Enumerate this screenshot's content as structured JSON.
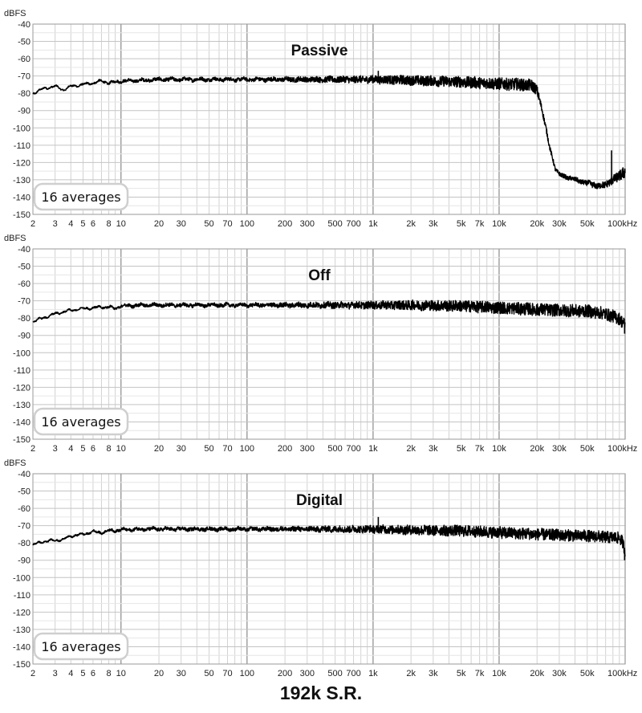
{
  "figure_caption": "192k S.R.",
  "chart_data": [
    {
      "type": "line",
      "title": "Passive",
      "ylabel": "dBFS",
      "x_unit": "Hz",
      "x_scale": "log",
      "xlim": [
        2,
        100000
      ],
      "ylim": [
        -150,
        -40
      ],
      "grid": true,
      "badge": "16 averages",
      "y_ticks": [
        "-40",
        "-50",
        "-60",
        "-70",
        "-80",
        "-90",
        "-100",
        "-110",
        "-120",
        "-130",
        "-140",
        "-150"
      ],
      "x_ticks": [
        {
          "v": 2,
          "label": "2"
        },
        {
          "v": 3,
          "label": "3"
        },
        {
          "v": 4,
          "label": "4"
        },
        {
          "v": 5,
          "label": "5"
        },
        {
          "v": 6,
          "label": "6"
        },
        {
          "v": 8,
          "label": "8"
        },
        {
          "v": 10,
          "label": "10"
        },
        {
          "v": 20,
          "label": "20"
        },
        {
          "v": 30,
          "label": "30"
        },
        {
          "v": 50,
          "label": "50"
        },
        {
          "v": 70,
          "label": "70"
        },
        {
          "v": 100,
          "label": "100"
        },
        {
          "v": 200,
          "label": "200"
        },
        {
          "v": 300,
          "label": "300"
        },
        {
          "v": 500,
          "label": "500"
        },
        {
          "v": 700,
          "label": "700"
        },
        {
          "v": 1000,
          "label": "1k"
        },
        {
          "v": 2000,
          "label": "2k"
        },
        {
          "v": 3000,
          "label": "3k"
        },
        {
          "v": 5000,
          "label": "5k"
        },
        {
          "v": 7000,
          "label": "7k"
        },
        {
          "v": 10000,
          "label": "10k"
        },
        {
          "v": 20000,
          "label": "20k"
        },
        {
          "v": 30000,
          "label": "30k"
        },
        {
          "v": 50000,
          "label": "50k"
        },
        {
          "v": 100000,
          "label": "100kHz"
        }
      ],
      "series": [
        {
          "x": [
            2,
            2.5,
            3,
            3.5,
            4,
            5,
            6,
            7,
            8,
            10,
            15,
            20,
            50,
            100,
            200,
            500,
            1000,
            2000,
            5000,
            10000,
            15000,
            18000,
            20000,
            22000,
            25000,
            28000,
            30000,
            40000,
            50000,
            60000,
            70000,
            80000,
            90000,
            100000
          ],
          "y": [
            -80,
            -77,
            -76,
            -78,
            -76,
            -75,
            -74,
            -73,
            -74,
            -73,
            -72.5,
            -72,
            -72,
            -72,
            -72,
            -72,
            -72,
            -72.5,
            -73.5,
            -74.5,
            -75,
            -75.5,
            -78,
            -90,
            -110,
            -124,
            -127,
            -130,
            -132,
            -133.5,
            -133,
            -130,
            -128,
            -125
          ],
          "noise": [
            0.4,
            0.4,
            0.4,
            0.4,
            0.4,
            0.5,
            0.5,
            0.6,
            0.6,
            0.8,
            0.9,
            1.0,
            1.0,
            1.0,
            1.3,
            1.8,
            2.2,
            2.8,
            3.3,
            3.5,
            3.5,
            3.5,
            3,
            2,
            1.5,
            1.2,
            1.2,
            1.3,
            1.5,
            1.8,
            2.0,
            2.5,
            3.0,
            4.0
          ],
          "spikes": [
            {
              "x": 1100,
              "y": -67
            },
            {
              "x": 78000,
              "y": -113
            }
          ]
        }
      ]
    },
    {
      "type": "line",
      "title": "Off",
      "ylabel": "dBFS",
      "x_unit": "Hz",
      "x_scale": "log",
      "xlim": [
        2,
        100000
      ],
      "ylim": [
        -150,
        -40
      ],
      "grid": true,
      "badge": "16 averages",
      "y_ticks": [
        "-40",
        "-50",
        "-60",
        "-70",
        "-80",
        "-90",
        "-100",
        "-110",
        "-120",
        "-130",
        "-140",
        "-150"
      ],
      "x_ticks": [
        {
          "v": 2,
          "label": "2"
        },
        {
          "v": 3,
          "label": "3"
        },
        {
          "v": 4,
          "label": "4"
        },
        {
          "v": 5,
          "label": "5"
        },
        {
          "v": 6,
          "label": "6"
        },
        {
          "v": 8,
          "label": "8"
        },
        {
          "v": 10,
          "label": "10"
        },
        {
          "v": 20,
          "label": "20"
        },
        {
          "v": 30,
          "label": "30"
        },
        {
          "v": 50,
          "label": "50"
        },
        {
          "v": 70,
          "label": "70"
        },
        {
          "v": 100,
          "label": "100"
        },
        {
          "v": 200,
          "label": "200"
        },
        {
          "v": 300,
          "label": "300"
        },
        {
          "v": 500,
          "label": "500"
        },
        {
          "v": 700,
          "label": "700"
        },
        {
          "v": 1000,
          "label": "1k"
        },
        {
          "v": 2000,
          "label": "2k"
        },
        {
          "v": 3000,
          "label": "3k"
        },
        {
          "v": 5000,
          "label": "5k"
        },
        {
          "v": 7000,
          "label": "7k"
        },
        {
          "v": 10000,
          "label": "10k"
        },
        {
          "v": 20000,
          "label": "20k"
        },
        {
          "v": 30000,
          "label": "30k"
        },
        {
          "v": 50000,
          "label": "50k"
        },
        {
          "v": 100000,
          "label": "100kHz"
        }
      ],
      "series": [
        {
          "x": [
            2,
            2.5,
            3,
            4,
            5,
            6,
            8,
            9,
            10,
            15,
            20,
            50,
            100,
            200,
            500,
            1000,
            2000,
            5000,
            10000,
            20000,
            30000,
            50000,
            70000,
            80000,
            90000,
            95000,
            100000
          ],
          "y": [
            -82,
            -79.5,
            -77.5,
            -75.5,
            -74.5,
            -74,
            -73.5,
            -74.5,
            -73,
            -72.5,
            -72.5,
            -72.5,
            -72.5,
            -72.5,
            -72.5,
            -72.5,
            -72.5,
            -73,
            -74,
            -75,
            -75.5,
            -76,
            -77.5,
            -79,
            -80.5,
            -82,
            -84
          ],
          "noise": [
            0.4,
            0.4,
            0.4,
            0.4,
            0.4,
            0.5,
            0.6,
            0.6,
            0.8,
            0.9,
            1.0,
            1.0,
            1.0,
            1.3,
            1.8,
            2.2,
            2.8,
            3.3,
            3.5,
            3.6,
            3.6,
            3.6,
            3.6,
            3.6,
            3.6,
            3.6,
            3.6
          ],
          "spikes": [
            {
              "x": 99000,
              "y": -89
            }
          ]
        }
      ]
    },
    {
      "type": "line",
      "title": "Digital",
      "ylabel": "dBFS",
      "x_unit": "Hz",
      "x_scale": "log",
      "xlim": [
        2,
        100000
      ],
      "ylim": [
        -150,
        -40
      ],
      "grid": true,
      "badge": "16 averages",
      "y_ticks": [
        "-40",
        "-50",
        "-60",
        "-70",
        "-80",
        "-90",
        "-100",
        "-110",
        "-120",
        "-130",
        "-140",
        "-150"
      ],
      "x_ticks": [
        {
          "v": 2,
          "label": "2"
        },
        {
          "v": 3,
          "label": "3"
        },
        {
          "v": 4,
          "label": "4"
        },
        {
          "v": 5,
          "label": "5"
        },
        {
          "v": 6,
          "label": "6"
        },
        {
          "v": 8,
          "label": "8"
        },
        {
          "v": 10,
          "label": "10"
        },
        {
          "v": 20,
          "label": "20"
        },
        {
          "v": 30,
          "label": "30"
        },
        {
          "v": 50,
          "label": "50"
        },
        {
          "v": 70,
          "label": "70"
        },
        {
          "v": 100,
          "label": "100"
        },
        {
          "v": 200,
          "label": "200"
        },
        {
          "v": 300,
          "label": "300"
        },
        {
          "v": 500,
          "label": "500"
        },
        {
          "v": 700,
          "label": "700"
        },
        {
          "v": 1000,
          "label": "1k"
        },
        {
          "v": 2000,
          "label": "2k"
        },
        {
          "v": 3000,
          "label": "3k"
        },
        {
          "v": 5000,
          "label": "5k"
        },
        {
          "v": 7000,
          "label": "7k"
        },
        {
          "v": 10000,
          "label": "10k"
        },
        {
          "v": 20000,
          "label": "20k"
        },
        {
          "v": 30000,
          "label": "30k"
        },
        {
          "v": 50000,
          "label": "50k"
        },
        {
          "v": 100000,
          "label": "100kHz"
        }
      ],
      "series": [
        {
          "x": [
            2,
            2.5,
            3,
            3.5,
            4,
            5,
            6,
            7,
            8,
            10,
            15,
            20,
            50,
            100,
            200,
            500,
            1000,
            2000,
            5000,
            10000,
            20000,
            30000,
            50000,
            70000,
            80000,
            90000,
            95000,
            100000
          ],
          "y": [
            -81,
            -79,
            -78.5,
            -78,
            -76,
            -75,
            -73.5,
            -74,
            -73,
            -72.5,
            -72,
            -72,
            -72,
            -72,
            -72,
            -72,
            -72,
            -72.5,
            -73,
            -74,
            -75,
            -75.5,
            -76,
            -76.5,
            -77,
            -77,
            -79,
            -85
          ],
          "noise": [
            0.4,
            0.4,
            0.4,
            0.4,
            0.4,
            0.5,
            0.5,
            0.6,
            0.6,
            0.8,
            0.9,
            1.0,
            1.0,
            1.0,
            1.3,
            1.8,
            2.2,
            2.8,
            3.2,
            3.4,
            3.4,
            3.4,
            3.4,
            3.4,
            3.4,
            3.4,
            3.4,
            3.4
          ],
          "spikes": [
            {
              "x": 1100,
              "y": -65
            },
            {
              "x": 99000,
              "y": -90
            }
          ]
        }
      ]
    }
  ]
}
